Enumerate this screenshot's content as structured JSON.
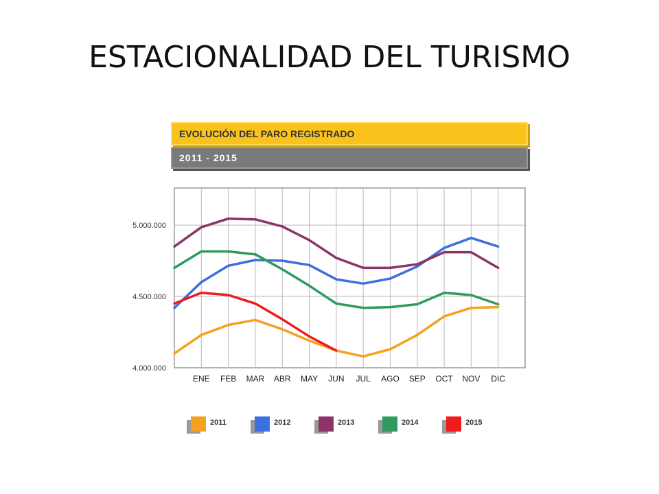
{
  "slide": {
    "title": "ESTACIONALIDAD DEL TURISMO"
  },
  "header": {
    "title": "EVOLUCIÓN DEL PARO REGISTRADO",
    "subtitle": "2011 - 2015"
  },
  "chart_data": {
    "type": "line",
    "title": "EVOLUCIÓN DEL PARO REGISTRADO",
    "subtitle": "2011 - 2015",
    "categories": [
      "ENE",
      "FEB",
      "MAR",
      "ABR",
      "MAY",
      "JUN",
      "JUL",
      "AGO",
      "SEP",
      "OCT",
      "NOV",
      "DIC"
    ],
    "y_ticks": [
      4000000,
      4500000,
      5000000
    ],
    "y_tick_labels": [
      "4.000.000",
      "4.500.000",
      "5.000.000"
    ],
    "ylim": [
      4000000,
      5260000
    ],
    "grid": true,
    "legend_position": "bottom",
    "series": [
      {
        "name": "2011",
        "color": "#f5a01f",
        "start": 4100000,
        "values": [
          4230000,
          4300000,
          4335000,
          4270000,
          4190000,
          4120000,
          4080000,
          4130000,
          4230000,
          4360000,
          4420000,
          4425000
        ]
      },
      {
        "name": "2012",
        "color": "#3d6fe0",
        "start": 4420000,
        "values": [
          4600000,
          4715000,
          4755000,
          4750000,
          4720000,
          4620000,
          4590000,
          4625000,
          4710000,
          4840000,
          4910000,
          4850000
        ]
      },
      {
        "name": "2013",
        "color": "#8c3368",
        "start": 4850000,
        "values": [
          4985000,
          5045000,
          5040000,
          4990000,
          4895000,
          4770000,
          4700000,
          4700000,
          4725000,
          4810000,
          4810000,
          4700000
        ]
      },
      {
        "name": "2014",
        "color": "#2e9a5f",
        "start": 4700000,
        "values": [
          4815000,
          4815000,
          4795000,
          4690000,
          4575000,
          4450000,
          4420000,
          4425000,
          4445000,
          4525000,
          4510000,
          4445000
        ]
      },
      {
        "name": "2015",
        "color": "#ee1c1c",
        "start": 4450000,
        "values": [
          4525000,
          4510000,
          4450000,
          4340000,
          4220000,
          4120000,
          null,
          null,
          null,
          null,
          null,
          null
        ]
      }
    ]
  }
}
